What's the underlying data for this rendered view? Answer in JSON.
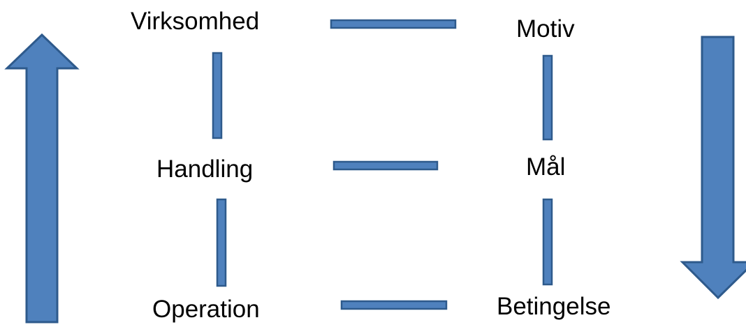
{
  "labels": {
    "virksomhed": "Virksomhed",
    "motiv": "Motiv",
    "handling": "Handling",
    "maal": "Mål",
    "operation": "Operation",
    "betingelse": "Betingelse"
  },
  "colors": {
    "fill": "#4f81bd",
    "stroke": "#2e5a8c",
    "text": "#000000"
  }
}
